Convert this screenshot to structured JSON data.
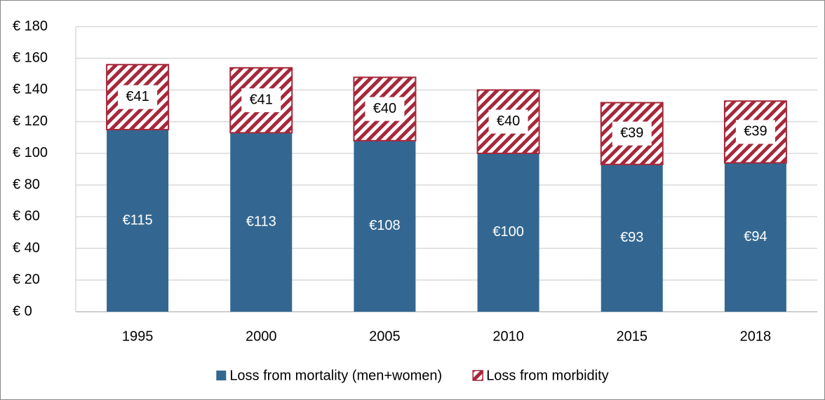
{
  "chart_data": {
    "type": "stacked_bar",
    "categories": [
      "1995",
      "2000",
      "2005",
      "2010",
      "2015",
      "2018"
    ],
    "series": [
      {
        "name": "Loss from mortality (men+women)",
        "color": "#336791",
        "values": [
          115,
          113,
          108,
          100,
          93,
          94
        ],
        "value_labels": [
          "€115",
          "€113",
          "€108",
          "€100",
          "€93",
          "€94"
        ]
      },
      {
        "name": "Loss from morbidity",
        "color": "#a6283a",
        "hatch": true,
        "values": [
          41,
          41,
          40,
          40,
          39,
          39
        ],
        "value_labels": [
          "€41",
          "€41",
          "€40",
          "€40",
          "€39",
          "€39"
        ]
      }
    ],
    "ylim": [
      0,
      180
    ],
    "yticks": [
      {
        "value": 0,
        "label": "€ 0"
      },
      {
        "value": 20,
        "label": "€ 20"
      },
      {
        "value": 40,
        "label": "€ 40"
      },
      {
        "value": 60,
        "label": "€ 60"
      },
      {
        "value": 80,
        "label": "€ 80"
      },
      {
        "value": 100,
        "label": "€ 100"
      },
      {
        "value": 120,
        "label": "€ 120"
      },
      {
        "value": 140,
        "label": "€ 140"
      },
      {
        "value": 160,
        "label": "€ 160"
      },
      {
        "value": 180,
        "label": "€ 180"
      }
    ],
    "grid": true,
    "legend": "bottom"
  }
}
